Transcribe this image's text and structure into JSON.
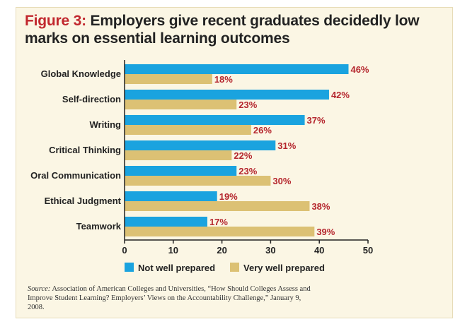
{
  "figure_label": "Figure 3:",
  "title": "Employers give recent graduates decidedly low marks on essential learning outcomes",
  "source": {
    "label": "Source:",
    "text": "Association of American Colleges and Universities, “How Should Colleges Assess and Improve Student Learning? Employers’ Views on the Accountability Challenge,” January 9, 2008."
  },
  "chart_data": {
    "type": "bar",
    "orientation": "horizontal",
    "categories": [
      "Global Knowledge",
      "Self-direction",
      "Writing",
      "Critical Thinking",
      "Oral Communication",
      "Ethical Judgment",
      "Teamwork"
    ],
    "series": [
      {
        "name": "Not well prepared",
        "color": "#1aa3df",
        "values": [
          46,
          42,
          37,
          31,
          23,
          19,
          17
        ]
      },
      {
        "name": "Very well prepared",
        "color": "#dcc174",
        "values": [
          18,
          23,
          26,
          22,
          30,
          38,
          39
        ]
      }
    ],
    "value_suffix": "%",
    "xlim": [
      0,
      50
    ],
    "xticks": [
      0,
      10,
      20,
      30,
      40,
      50
    ],
    "legend": "bottom",
    "grid": false
  },
  "colors": {
    "accent": "#c1272d",
    "value_label": "#b5272e",
    "background": "#fbf6e4"
  }
}
